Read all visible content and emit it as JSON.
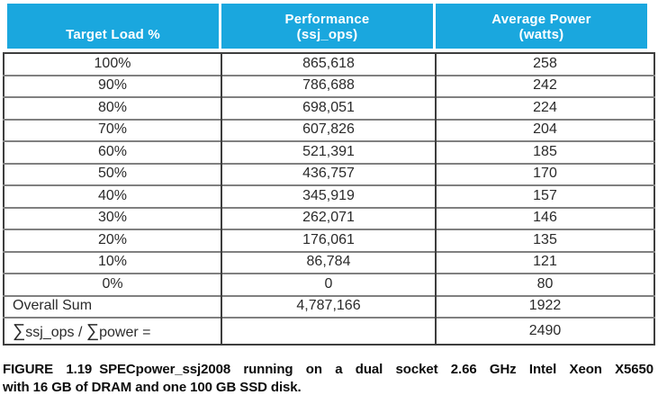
{
  "colors": {
    "header_bg": "#1AA7DE",
    "header_text": "#FFFFFF",
    "grid_dark": "#3E3E3E",
    "grid_light": "#808080",
    "body_text": "#2A2A2A",
    "caption_text": "#0D0D0D"
  },
  "chart_data": {
    "type": "table",
    "columns": [
      "Target Load %",
      "Performance (ssj_ops)",
      "Average Power (watts)"
    ],
    "rows": [
      [
        "100%",
        "865,618",
        "258"
      ],
      [
        "90%",
        "786,688",
        "242"
      ],
      [
        "80%",
        "698,051",
        "224"
      ],
      [
        "70%",
        "607,826",
        "204"
      ],
      [
        "60%",
        "521,391",
        "185"
      ],
      [
        "50%",
        "436,757",
        "170"
      ],
      [
        "40%",
        "345,919",
        "157"
      ],
      [
        "30%",
        "262,071",
        "146"
      ],
      [
        "20%",
        "176,061",
        "135"
      ],
      [
        "10%",
        "86,784",
        "121"
      ],
      [
        "0%",
        "0",
        "80"
      ],
      [
        "Overall Sum",
        "4,787,166",
        "1922"
      ],
      [
        "∑ssj_ops / ∑power =",
        "",
        "2490"
      ]
    ]
  },
  "table": {
    "columns": [
      {
        "line1": "",
        "line2": "Target Load %"
      },
      {
        "line1": "Performance",
        "line2": "(ssj_ops)"
      },
      {
        "line1": "Average Power",
        "line2": "(watts)"
      }
    ],
    "rows": [
      {
        "load": "100%",
        "perf": "865,618",
        "power": "258"
      },
      {
        "load": "90%",
        "perf": "786,688",
        "power": "242"
      },
      {
        "load": "80%",
        "perf": "698,051",
        "power": "224"
      },
      {
        "load": "70%",
        "perf": "607,826",
        "power": "204"
      },
      {
        "load": "60%",
        "perf": "521,391",
        "power": "185"
      },
      {
        "load": "50%",
        "perf": "436,757",
        "power": "170"
      },
      {
        "load": "40%",
        "perf": "345,919",
        "power": "157"
      },
      {
        "load": "30%",
        "perf": "262,071",
        "power": "146"
      },
      {
        "load": "20%",
        "perf": "176,061",
        "power": "135"
      },
      {
        "load": "10%",
        "perf": "86,784",
        "power": "121"
      },
      {
        "load": "0%",
        "perf": "0",
        "power": "80"
      }
    ],
    "overall": {
      "load": "Overall Sum",
      "perf": "4,787,166",
      "power": "1922"
    },
    "ratio": {
      "sigma": "∑",
      "part1": "ssj_ops / ",
      "part2": "power =",
      "perf": "",
      "power": "2490"
    }
  },
  "caption": {
    "label": "FIGURE 1.19",
    "line1": "SPECpower_ssj2008 running on a dual socket 2.66 GHz Intel Xeon X5650",
    "line2": "with 16 GB of DRAM and one 100 GB SSD disk."
  }
}
